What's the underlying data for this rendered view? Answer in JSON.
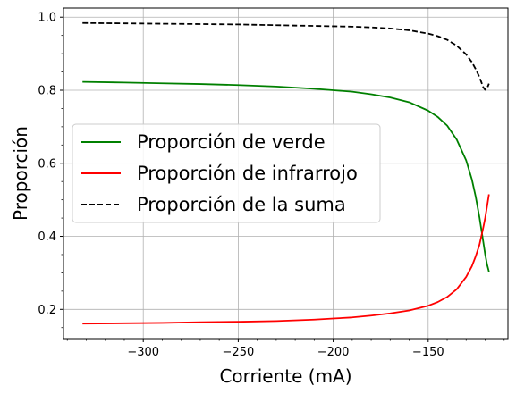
{
  "chart_data": {
    "type": "line",
    "xlabel": "Corriente (mA)",
    "ylabel": "Proporción",
    "xlim": [
      -342,
      -108
    ],
    "ylim": [
      0.12,
      1.025
    ],
    "xticks": [
      -300,
      -250,
      -200,
      -150
    ],
    "xtick_labels": [
      "−300",
      "−250",
      "−200",
      "−150"
    ],
    "yticks": [
      0.2,
      0.4,
      0.6,
      0.8,
      1.0
    ],
    "ytick_labels": [
      "0.2",
      "0.4",
      "0.6",
      "0.8",
      "1.0"
    ],
    "grid": true,
    "legend_position": "center-left",
    "series": [
      {
        "name": "Proporción de verde",
        "color": "#008000",
        "dash": "solid",
        "x": [
          -332,
          -310,
          -290,
          -270,
          -250,
          -230,
          -210,
          -200,
          -190,
          -180,
          -170,
          -160,
          -150,
          -145,
          -140,
          -135,
          -130,
          -127,
          -125,
          -123,
          -121,
          -120,
          -119,
          -118
        ],
        "y": [
          0.823,
          0.821,
          0.819,
          0.817,
          0.814,
          0.81,
          0.804,
          0.8,
          0.796,
          0.789,
          0.78,
          0.767,
          0.744,
          0.727,
          0.703,
          0.665,
          0.608,
          0.556,
          0.509,
          0.452,
          0.385,
          0.351,
          0.323,
          0.303
        ]
      },
      {
        "name": "Proporción de infrarrojo",
        "color": "#ff0000",
        "dash": "solid",
        "x": [
          -332,
          -310,
          -290,
          -270,
          -250,
          -230,
          -210,
          -200,
          -190,
          -180,
          -170,
          -160,
          -150,
          -145,
          -140,
          -135,
          -130,
          -127,
          -125,
          -123,
          -121,
          -120,
          -119,
          -118
        ],
        "y": [
          0.161,
          0.162,
          0.163,
          0.165,
          0.166,
          0.168,
          0.172,
          0.175,
          0.178,
          0.183,
          0.189,
          0.197,
          0.21,
          0.22,
          0.234,
          0.255,
          0.289,
          0.318,
          0.345,
          0.377,
          0.424,
          0.45,
          0.482,
          0.515
        ]
      },
      {
        "name": "Proporción de la suma",
        "color": "#000000",
        "dash": "dashed",
        "x": [
          -332,
          -310,
          -290,
          -270,
          -250,
          -230,
          -210,
          -200,
          -190,
          -180,
          -170,
          -160,
          -150,
          -145,
          -140,
          -135,
          -130,
          -127,
          -125,
          -123,
          -121,
          -120,
          -119,
          -118
        ],
        "y": [
          0.984,
          0.983,
          0.982,
          0.981,
          0.98,
          0.978,
          0.976,
          0.975,
          0.974,
          0.972,
          0.969,
          0.964,
          0.955,
          0.948,
          0.938,
          0.922,
          0.898,
          0.877,
          0.858,
          0.836,
          0.808,
          0.801,
          0.805,
          0.818
        ]
      }
    ]
  }
}
